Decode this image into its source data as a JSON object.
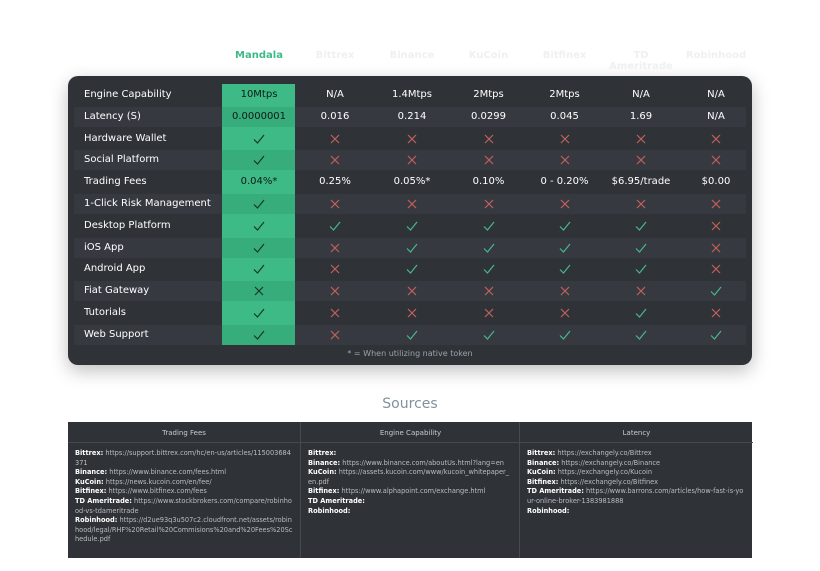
{
  "table": {
    "columns": [
      "Mandala",
      "Bittrex",
      "Binance",
      "KuCoin",
      "Bitfinex",
      "TD Ameritrade",
      "Robinhood"
    ],
    "rows": [
      {
        "label": "Engine Capability",
        "cells": [
          "10Mtps",
          "N/A",
          "1.4Mtps",
          "2Mtps",
          "2Mtps",
          "N/A",
          "N/A"
        ]
      },
      {
        "label": "Latency (S)",
        "cells": [
          "0.0000001",
          "0.016",
          "0.214",
          "0.0299",
          "0.045",
          "1.69",
          "N/A"
        ]
      },
      {
        "label": "Hardware Wallet",
        "cells": [
          true,
          false,
          false,
          false,
          false,
          false,
          false
        ]
      },
      {
        "label": "Social Platform",
        "cells": [
          true,
          false,
          false,
          false,
          false,
          false,
          false
        ]
      },
      {
        "label": "Trading Fees",
        "cells": [
          "0.04%*",
          "0.25%",
          "0.05%*",
          "0.10%",
          "0 - 0.20%",
          "$6.95/trade",
          "$0.00"
        ]
      },
      {
        "label": "1-Click Risk Management",
        "cells": [
          true,
          false,
          false,
          false,
          false,
          false,
          false
        ]
      },
      {
        "label": "Desktop Platform",
        "cells": [
          true,
          true,
          true,
          true,
          true,
          true,
          false
        ]
      },
      {
        "label": "iOS App",
        "cells": [
          true,
          false,
          true,
          true,
          true,
          true,
          false
        ]
      },
      {
        "label": "Android App",
        "cells": [
          true,
          false,
          true,
          true,
          true,
          true,
          false
        ]
      },
      {
        "label": "Fiat Gateway",
        "cells": [
          false,
          false,
          false,
          false,
          false,
          false,
          true
        ]
      },
      {
        "label": "Tutorials",
        "cells": [
          true,
          false,
          false,
          false,
          false,
          true,
          false
        ]
      },
      {
        "label": "Web Support",
        "cells": [
          true,
          false,
          true,
          true,
          true,
          true,
          true
        ]
      }
    ],
    "note": "* = When utilizing native token"
  },
  "sources": {
    "title": "Sources",
    "columns": [
      {
        "header": "Trading Fees",
        "items": [
          {
            "name": "Bittrex:",
            "text": "https://support.bittrex.com/hc/en-us/articles/115003684371"
          },
          {
            "name": "Binance:",
            "text": "https://www.binance.com/fees.html"
          },
          {
            "name": "KuCoin:",
            "text": "https://news.kucoin.com/en/fee/"
          },
          {
            "name": "Bitfinex:",
            "text": "https://www.bitfinex.com/fees"
          },
          {
            "name": "TD Ameritrade:",
            "text": "https://www.stockbrokers.com/compare/robinhood-vs-tdameritrade"
          },
          {
            "name": "Robinhood:",
            "text": "https://d2ue93q3u507c2.cloudfront.net/assets/robinhood/legal/RHF%20Retail%20Commisions%20and%20Fees%20Schedule.pdf"
          }
        ]
      },
      {
        "header": "Engine Capability",
        "items": [
          {
            "name": "Bittrex:"
          },
          {
            "name": "Binance:",
            "text": "https://www.binance.com/aboutUs.html?lang=en"
          },
          {
            "name": "KuCoin:",
            "text": "https://assets.kucoin.com/www/kucoin_whitepaper_en.pdf"
          },
          {
            "name": "Bitfinex:",
            "text": "https://www.alphapoint.com/exchange.html"
          },
          {
            "name": "TD Ameritrade:"
          },
          {
            "name": "Robinhood:"
          }
        ]
      },
      {
        "header": "Latency",
        "items": [
          {
            "name": "Bittrex:",
            "text": "https://exchangely.co/Bittrex"
          },
          {
            "name": "Binance:",
            "text": "https://exchangely.co/Binance"
          },
          {
            "name": "KuCoin:",
            "text": "https://exchangely.co/Kucoin"
          },
          {
            "name": "Bitfinex:",
            "text": "https://exchangely.co/Bitfinex"
          },
          {
            "name": "TD Ameritrade:",
            "text": "https://www.barrons.com/articles/how-fast-is-your-online-broker-1383981888"
          },
          {
            "name": "Robinhood:"
          }
        ]
      }
    ]
  }
}
